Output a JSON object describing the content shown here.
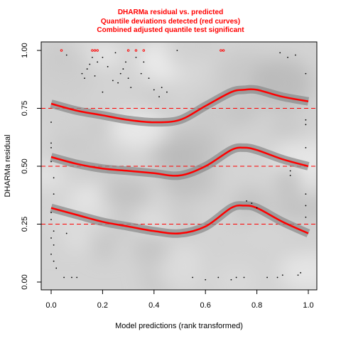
{
  "chart_data": {
    "type": "scatter",
    "title_lines": [
      "DHARMa residual vs. predicted",
      "Quantile deviations detected (red curves)",
      "Combined adjusted quantile test significant"
    ],
    "xlabel": "Model predictions (rank transformed)",
    "ylabel": "DHARMa residual",
    "xlim": [
      0.0,
      1.0
    ],
    "ylim": [
      0.0,
      1.0
    ],
    "x_ticks": [
      "0.0",
      "0.2",
      "0.4",
      "0.6",
      "0.8",
      "1.0"
    ],
    "y_ticks": [
      "0.00",
      "0.25",
      "0.50",
      "0.75",
      "1.00"
    ],
    "reference_lines": [
      0.25,
      0.5,
      0.75
    ],
    "colors": {
      "curve": "#ff0000",
      "band": "#8c8c8c",
      "reference": "#ff0000",
      "points": "#000000",
      "outliers": "#ff0000"
    },
    "series": [
      {
        "quantile": 0.25,
        "x": [
          0.0,
          0.1,
          0.2,
          0.3,
          0.4,
          0.5,
          0.6,
          0.7,
          0.75,
          0.8,
          0.9,
          1.0
        ],
        "y": [
          0.32,
          0.29,
          0.26,
          0.24,
          0.22,
          0.21,
          0.24,
          0.32,
          0.33,
          0.32,
          0.26,
          0.21
        ]
      },
      {
        "quantile": 0.5,
        "x": [
          0.0,
          0.1,
          0.2,
          0.3,
          0.4,
          0.5,
          0.6,
          0.7,
          0.75,
          0.8,
          0.9,
          1.0
        ],
        "y": [
          0.54,
          0.51,
          0.49,
          0.48,
          0.47,
          0.46,
          0.5,
          0.57,
          0.58,
          0.57,
          0.53,
          0.5
        ]
      },
      {
        "quantile": 0.75,
        "x": [
          0.0,
          0.1,
          0.2,
          0.3,
          0.4,
          0.5,
          0.6,
          0.7,
          0.75,
          0.8,
          0.9,
          1.0
        ],
        "y": [
          0.77,
          0.74,
          0.72,
          0.7,
          0.69,
          0.7,
          0.76,
          0.82,
          0.83,
          0.83,
          0.8,
          0.78
        ]
      }
    ],
    "points": [
      [
        0.0,
        0.69
      ],
      [
        0.0,
        0.6
      ],
      [
        0.0,
        0.58
      ],
      [
        0.0,
        0.52
      ],
      [
        0.01,
        0.45
      ],
      [
        0.01,
        0.38
      ],
      [
        0.0,
        0.3
      ],
      [
        0.0,
        0.27
      ],
      [
        0.01,
        0.22
      ],
      [
        0.0,
        0.19
      ],
      [
        0.01,
        0.16
      ],
      [
        0.0,
        0.12
      ],
      [
        0.01,
        0.09
      ],
      [
        0.02,
        0.06
      ],
      [
        0.05,
        0.02
      ],
      [
        0.06,
        0.21
      ],
      [
        0.06,
        0.98
      ],
      [
        0.08,
        0.02
      ],
      [
        0.1,
        0.02
      ],
      [
        0.12,
        0.9
      ],
      [
        0.13,
        0.88
      ],
      [
        0.14,
        0.92
      ],
      [
        0.15,
        0.94
      ],
      [
        0.16,
        0.97
      ],
      [
        0.17,
        0.89
      ],
      [
        0.18,
        0.95
      ],
      [
        0.2,
        0.82
      ],
      [
        0.2,
        0.97
      ],
      [
        0.22,
        0.93
      ],
      [
        0.24,
        0.87
      ],
      [
        0.25,
        0.99
      ],
      [
        0.26,
        0.86
      ],
      [
        0.27,
        0.9
      ],
      [
        0.28,
        0.92
      ],
      [
        0.29,
        0.95
      ],
      [
        0.3,
        0.88
      ],
      [
        0.31,
        0.84
      ],
      [
        0.33,
        0.97
      ],
      [
        0.35,
        0.9
      ],
      [
        0.36,
        0.95
      ],
      [
        0.38,
        0.88
      ],
      [
        0.4,
        0.83
      ],
      [
        0.42,
        0.8
      ],
      [
        0.43,
        0.84
      ],
      [
        0.45,
        0.82
      ],
      [
        0.49,
        1.0
      ],
      [
        0.55,
        0.02
      ],
      [
        0.6,
        0.01
      ],
      [
        0.65,
        0.02
      ],
      [
        0.7,
        0.01
      ],
      [
        0.72,
        0.02
      ],
      [
        0.75,
        0.02
      ],
      [
        0.76,
        0.35
      ],
      [
        0.78,
        0.34
      ],
      [
        0.8,
        0.32
      ],
      [
        0.84,
        0.02
      ],
      [
        0.88,
        0.02
      ],
      [
        0.89,
        0.99
      ],
      [
        0.9,
        0.03
      ],
      [
        0.92,
        0.97
      ],
      [
        0.93,
        0.48
      ],
      [
        0.93,
        0.46
      ],
      [
        0.95,
        0.98
      ],
      [
        0.96,
        0.03
      ],
      [
        0.97,
        0.04
      ],
      [
        0.99,
        0.28
      ],
      [
        0.99,
        0.33
      ],
      [
        0.99,
        0.38
      ],
      [
        0.99,
        0.58
      ],
      [
        0.99,
        0.68
      ],
      [
        0.99,
        0.7
      ],
      [
        0.99,
        0.9
      ]
    ],
    "outliers": [
      [
        0.04,
        1.0
      ],
      [
        0.16,
        1.0
      ],
      [
        0.17,
        1.0
      ],
      [
        0.18,
        1.0
      ],
      [
        0.3,
        1.0
      ],
      [
        0.33,
        1.0
      ],
      [
        0.36,
        1.0
      ],
      [
        0.66,
        1.0
      ],
      [
        0.67,
        1.0
      ]
    ]
  }
}
